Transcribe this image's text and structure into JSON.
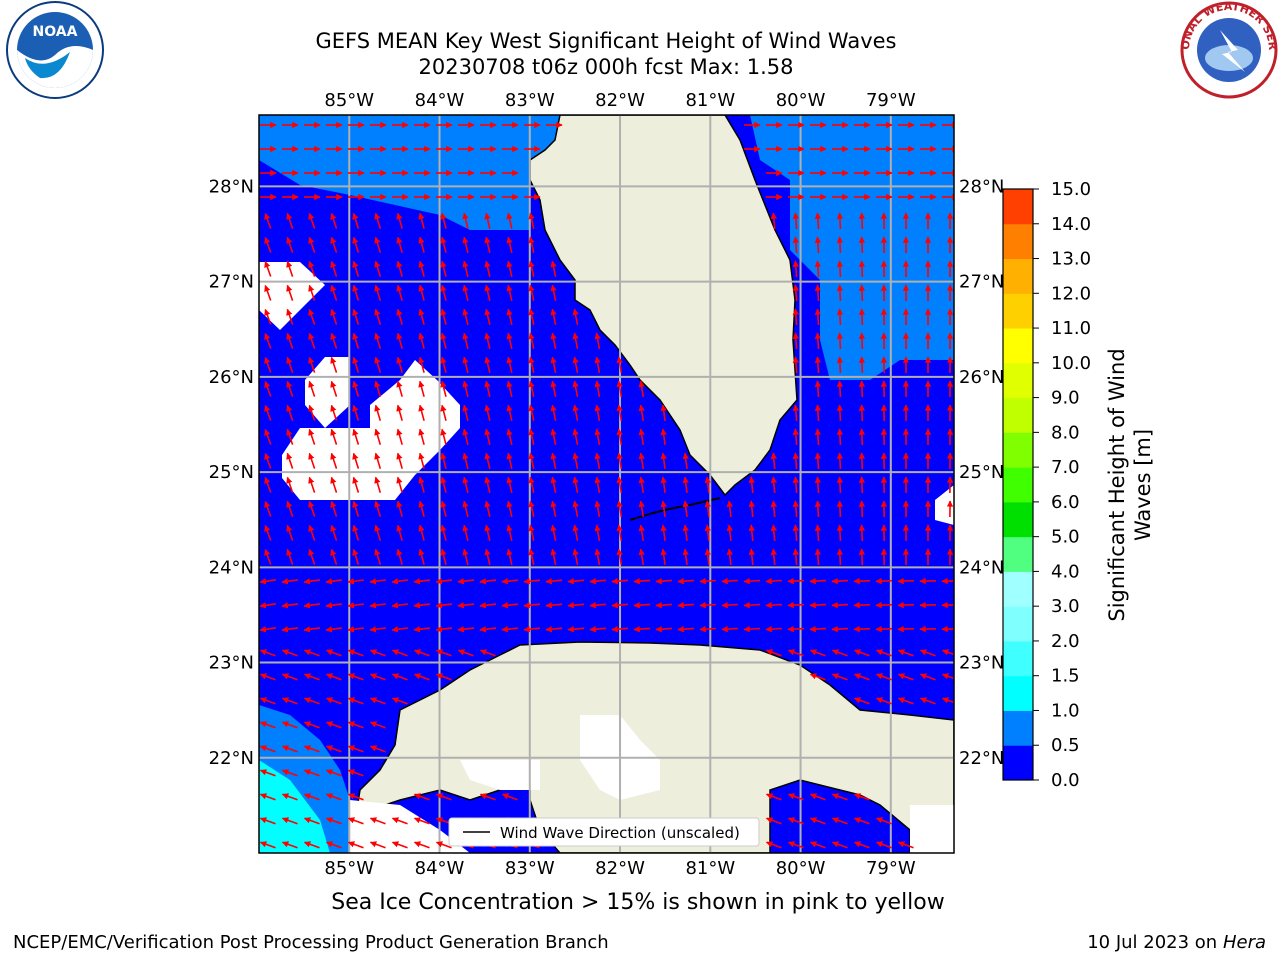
{
  "title_line1": "GEFS MEAN Key West Significant Height of Wind Waves",
  "title_line2": "20230708 t06z 000h fcst   Max: 1.58",
  "map": {
    "lon_ticks": [
      {
        "value": -85,
        "label": "85°W"
      },
      {
        "value": -84,
        "label": "84°W"
      },
      {
        "value": -83,
        "label": "83°W"
      },
      {
        "value": -82,
        "label": "82°W"
      },
      {
        "value": -81,
        "label": "81°W"
      },
      {
        "value": -80,
        "label": "80°W"
      },
      {
        "value": -79,
        "label": "79°W"
      }
    ],
    "lat_ticks": [
      {
        "value": 28,
        "label": "28°N"
      },
      {
        "value": 27,
        "label": "27°N"
      },
      {
        "value": 26,
        "label": "26°N"
      },
      {
        "value": 25,
        "label": "25°N"
      },
      {
        "value": 24,
        "label": "24°N"
      },
      {
        "value": 23,
        "label": "23°N"
      },
      {
        "value": 22,
        "label": "22°N"
      }
    ],
    "extent": {
      "lon_min": -86.0,
      "lon_max": -78.3,
      "lat_min": 21.0,
      "lat_max": 28.75
    },
    "legend_label": "Wind Wave Direction (unscaled)",
    "arrow_color": "#ff0000",
    "ocean_color_main": "#0000ff",
    "ocean_color_light": "#0080ff",
    "land_color": "#eeeedd"
  },
  "colorbar": {
    "label": "Significant Height of Wind Waves [m]",
    "label_line1": "Significant Height of Wind",
    "label_line2": "Waves [m]",
    "levels": [
      "0.0",
      "0.5",
      "1.0",
      "1.5",
      "2.0",
      "3.0",
      "4.0",
      "5.0",
      "6.0",
      "7.0",
      "8.0",
      "9.0",
      "10.0",
      "11.0",
      "12.0",
      "13.0",
      "14.0",
      "15.0"
    ],
    "colors": [
      "#0000ff",
      "#0080ff",
      "#00ffff",
      "#40ffff",
      "#80ffff",
      "#a0ffff",
      "#50ff80",
      "#00e000",
      "#40ff00",
      "#80ff00",
      "#c0ff00",
      "#e0ff00",
      "#ffff00",
      "#ffd000",
      "#ffb000",
      "#ff8000",
      "#ff4000",
      "#ff2000",
      "#ff0000"
    ]
  },
  "sea_ice_note": "Sea Ice Concentration > 15% is shown in pink to yellow",
  "footer_left": "NCEP/EMC/Verification Post Processing Product Generation Branch",
  "footer_right_prefix": "10 Jul 2023 on ",
  "footer_right_host": "Hera",
  "logos": {
    "noaa_text": "NOAA",
    "nws_text": "NATIONAL WEATHER SERVICE"
  }
}
